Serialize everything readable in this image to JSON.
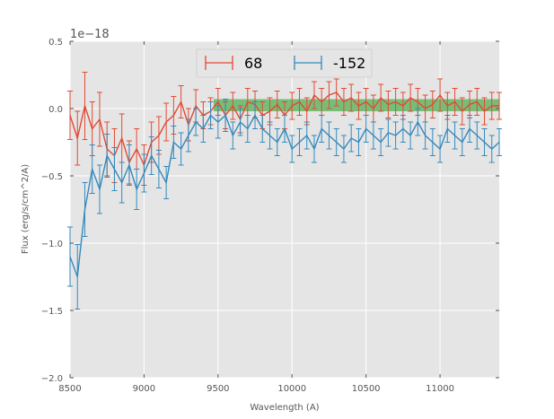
{
  "chart_data": {
    "type": "line",
    "title": "",
    "xlabel": "Wavelength (A)",
    "ylabel": "Flux (erg/s/cm^2/A)",
    "xlim": [
      8500,
      11400
    ],
    "ylim": [
      -2.0,
      0.5
    ],
    "offset_label": "1e−18",
    "xticks": [
      8500,
      9000,
      9500,
      10000,
      10500,
      11000
    ],
    "xtick_labels": [
      "8500",
      "9000",
      "9500",
      "10000",
      "10500",
      "11000"
    ],
    "yticks": [
      -2.0,
      -1.5,
      -1.0,
      -0.5,
      0.0,
      0.5
    ],
    "ytick_labels": [
      "−2.0",
      "−1.5",
      "−1.0",
      "−0.5",
      "0.0",
      "0.5"
    ],
    "grid": true,
    "legend_position": "top-center",
    "band": {
      "x_start": 9470,
      "x_end": 11400,
      "y_low": -0.02,
      "y_high": 0.07,
      "color": "#6ab86a"
    },
    "series": [
      {
        "name": "68",
        "color": "#e24a33",
        "x": [
          8500,
          8550,
          8600,
          8650,
          8700,
          8750,
          8800,
          8850,
          8900,
          8950,
          9000,
          9050,
          9100,
          9150,
          9200,
          9250,
          9300,
          9350,
          9400,
          9450,
          9500,
          9550,
          9600,
          9650,
          9700,
          9750,
          9800,
          9850,
          9900,
          9950,
          10000,
          10050,
          10100,
          10150,
          10200,
          10250,
          10300,
          10350,
          10400,
          10450,
          10500,
          10550,
          10600,
          10650,
          10700,
          10750,
          10800,
          10850,
          10900,
          10950,
          11000,
          11050,
          11100,
          11150,
          11200,
          11250,
          11300,
          11350,
          11400
        ],
        "values": [
          -0.05,
          -0.22,
          0.02,
          -0.15,
          -0.08,
          -0.3,
          -0.35,
          -0.22,
          -0.4,
          -0.3,
          -0.42,
          -0.25,
          -0.2,
          -0.1,
          -0.05,
          0.05,
          -0.12,
          0.02,
          -0.05,
          -0.02,
          0.05,
          -0.05,
          0.02,
          -0.08,
          0.05,
          0.03,
          -0.05,
          -0.02,
          0.03,
          -0.05,
          0.02,
          0.05,
          -0.02,
          0.1,
          0.05,
          0.1,
          0.12,
          0.05,
          0.08,
          0.02,
          0.05,
          0.0,
          0.08,
          0.03,
          0.05,
          0.02,
          0.08,
          0.05,
          0.0,
          0.03,
          0.1,
          0.02,
          0.05,
          -0.02,
          0.03,
          0.05,
          -0.02,
          0.02,
          0.02
        ],
        "errors": [
          0.18,
          0.2,
          0.25,
          0.2,
          0.2,
          0.2,
          0.2,
          0.18,
          0.16,
          0.15,
          0.15,
          0.15,
          0.14,
          0.14,
          0.14,
          0.12,
          0.12,
          0.12,
          0.1,
          0.1,
          0.1,
          0.1,
          0.1,
          0.1,
          0.1,
          0.1,
          0.1,
          0.1,
          0.1,
          0.1,
          0.1,
          0.1,
          0.1,
          0.1,
          0.1,
          0.1,
          0.1,
          0.1,
          0.1,
          0.1,
          0.1,
          0.1,
          0.1,
          0.1,
          0.1,
          0.1,
          0.1,
          0.1,
          0.1,
          0.1,
          0.12,
          0.1,
          0.1,
          0.1,
          0.1,
          0.1,
          0.1,
          0.1,
          0.1
        ]
      },
      {
        "name": "-152",
        "color": "#348abd",
        "x": [
          8500,
          8550,
          8600,
          8650,
          8700,
          8750,
          8800,
          8850,
          8900,
          8950,
          9000,
          9050,
          9100,
          9150,
          9200,
          9250,
          9300,
          9350,
          9400,
          9450,
          9500,
          9550,
          9600,
          9650,
          9700,
          9750,
          9800,
          9850,
          9900,
          9950,
          10000,
          10050,
          10100,
          10150,
          10200,
          10250,
          10300,
          10350,
          10400,
          10450,
          10500,
          10550,
          10600,
          10650,
          10700,
          10750,
          10800,
          10850,
          10900,
          10950,
          11000,
          11050,
          11100,
          11150,
          11200,
          11250,
          11300,
          11350,
          11400
        ],
        "values": [
          -1.1,
          -1.25,
          -0.75,
          -0.45,
          -0.6,
          -0.35,
          -0.45,
          -0.55,
          -0.42,
          -0.6,
          -0.48,
          -0.35,
          -0.45,
          -0.55,
          -0.25,
          -0.3,
          -0.2,
          -0.1,
          -0.15,
          -0.05,
          -0.1,
          -0.05,
          -0.2,
          -0.1,
          -0.15,
          -0.05,
          -0.15,
          -0.2,
          -0.25,
          -0.15,
          -0.3,
          -0.25,
          -0.2,
          -0.3,
          -0.15,
          -0.2,
          -0.25,
          -0.3,
          -0.22,
          -0.25,
          -0.15,
          -0.2,
          -0.25,
          -0.18,
          -0.2,
          -0.15,
          -0.2,
          -0.1,
          -0.2,
          -0.25,
          -0.3,
          -0.15,
          -0.2,
          -0.25,
          -0.15,
          -0.2,
          -0.25,
          -0.3,
          -0.25
        ],
        "errors": [
          0.22,
          0.24,
          0.2,
          0.18,
          0.18,
          0.16,
          0.16,
          0.15,
          0.15,
          0.15,
          0.14,
          0.14,
          0.14,
          0.12,
          0.12,
          0.12,
          0.12,
          0.1,
          0.1,
          0.1,
          0.12,
          0.12,
          0.1,
          0.1,
          0.1,
          0.1,
          0.1,
          0.1,
          0.1,
          0.1,
          0.1,
          0.1,
          0.1,
          0.1,
          0.1,
          0.1,
          0.1,
          0.1,
          0.1,
          0.1,
          0.1,
          0.1,
          0.1,
          0.1,
          0.1,
          0.1,
          0.1,
          0.1,
          0.1,
          0.1,
          0.1,
          0.1,
          0.1,
          0.1,
          0.1,
          0.1,
          0.1,
          0.1,
          0.1
        ]
      }
    ]
  }
}
